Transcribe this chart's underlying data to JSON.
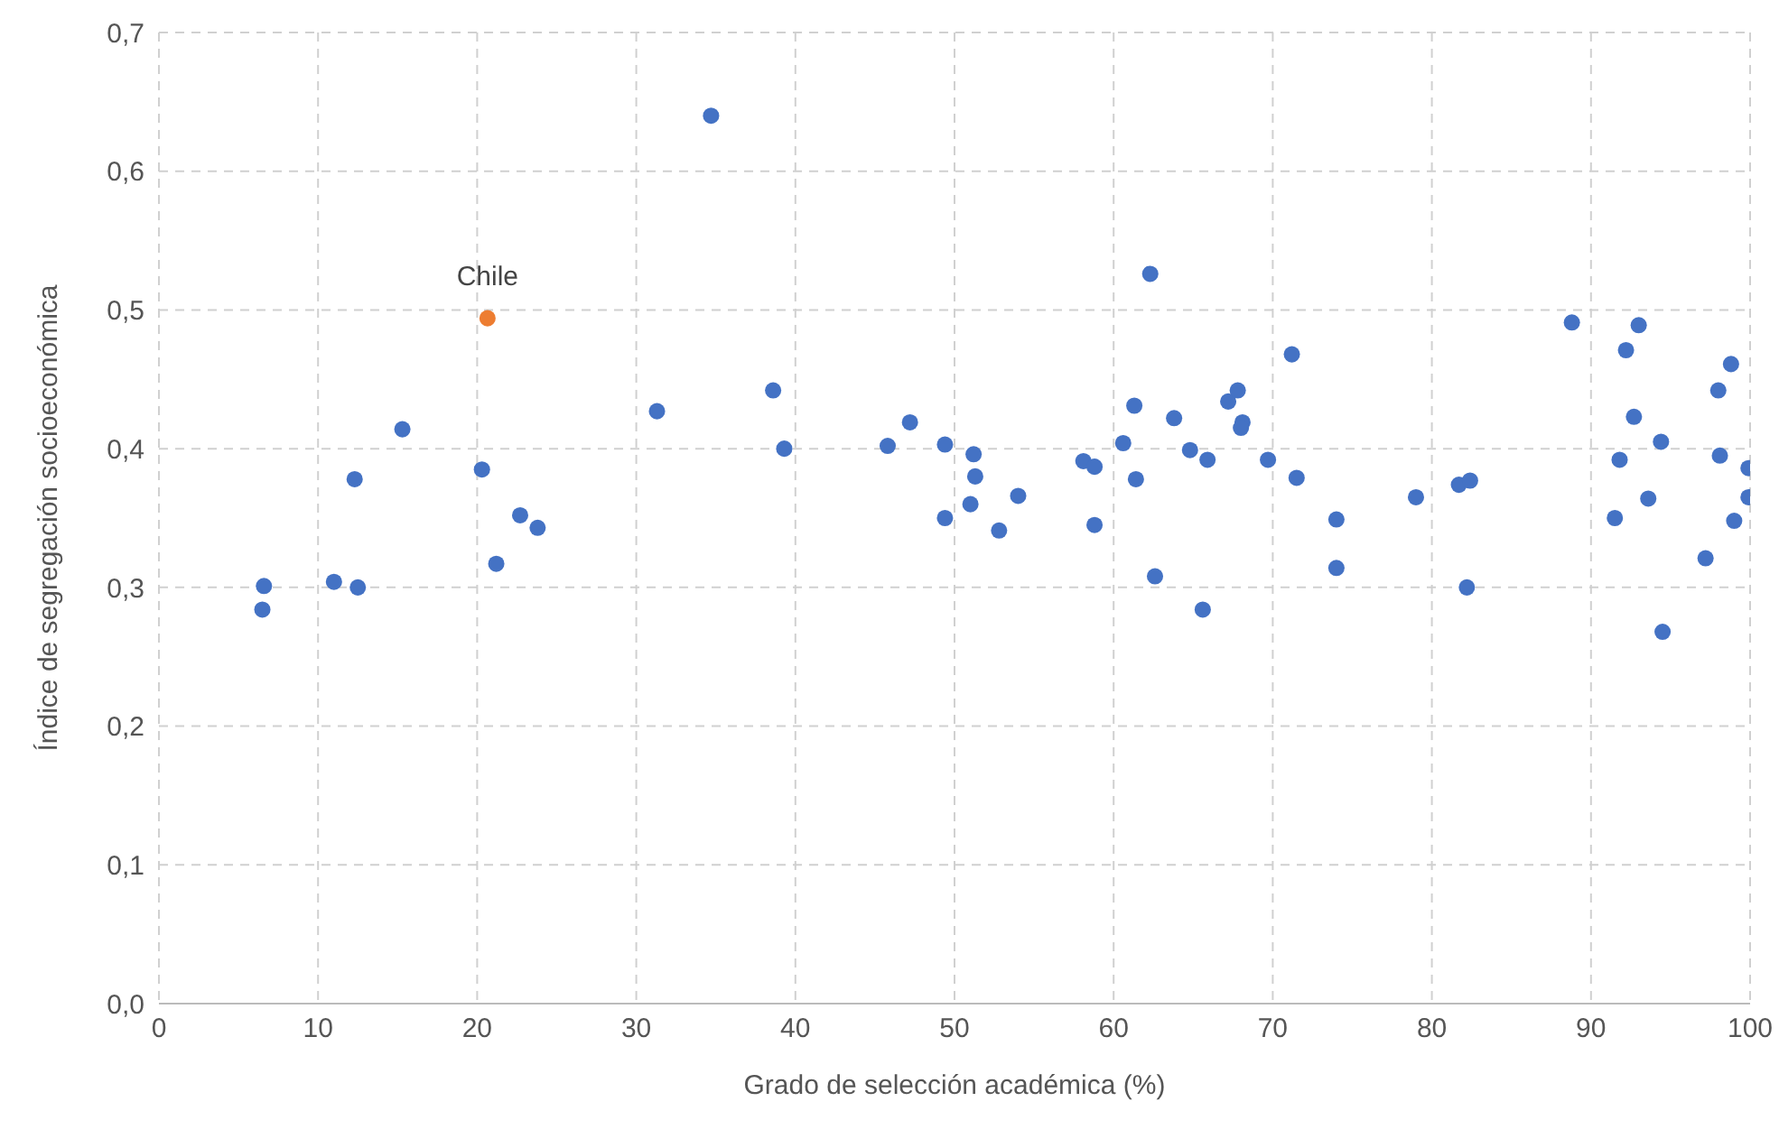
{
  "chart_data": {
    "type": "scatter",
    "xlabel": "Grado de selección académica (%)",
    "ylabel": "Índice de segregación socioeconómica",
    "xlim": [
      0,
      100
    ],
    "xticks": [
      0,
      10,
      20,
      30,
      40,
      50,
      60,
      70,
      80,
      90,
      100
    ],
    "ylim": [
      0,
      0.7
    ],
    "yticks": [
      {
        "value": 0,
        "label": "0,0"
      },
      {
        "value": 0.1,
        "label": "0,1"
      },
      {
        "value": 0.2,
        "label": "0,2"
      },
      {
        "value": 0.3,
        "label": "0,3"
      },
      {
        "value": 0.4,
        "label": "0,4"
      },
      {
        "value": 0.5,
        "label": "0,5"
      },
      {
        "value": 0.6,
        "label": "0,6"
      },
      {
        "value": 0.7,
        "label": "0,7"
      }
    ],
    "grid": true,
    "legend": false,
    "marker": "circle",
    "series": [
      {
        "color": "#4472c4",
        "x": [
          34.7,
          31.3,
          15.3,
          12.3,
          20.3,
          22.7,
          23.8,
          21.2,
          6.6,
          6.5,
          11.0,
          12.5,
          38.6,
          39.3,
          45.8,
          47.2,
          49.4,
          51.2,
          51.3,
          51.0,
          49.4,
          52.8,
          54.0,
          58.1,
          58.8,
          58.8,
          60.6,
          61.3,
          61.4,
          62.3,
          62.6,
          63.8,
          64.8,
          65.9,
          65.6,
          67.2,
          67.8,
          68.1,
          68.0,
          69.7,
          71.2,
          71.5,
          74.0,
          74.0,
          79.0,
          81.7,
          82.4,
          82.2,
          88.8,
          93.0,
          92.2,
          92.7,
          94.4,
          91.8,
          93.6,
          91.5,
          94.5,
          98.8,
          98.0,
          98.1,
          99.9,
          99.9,
          99.0,
          97.2
        ],
        "values": [
          0.64,
          0.427,
          0.414,
          0.378,
          0.385,
          0.352,
          0.343,
          0.317,
          0.301,
          0.284,
          0.304,
          0.3,
          0.442,
          0.4,
          0.402,
          0.419,
          0.403,
          0.396,
          0.38,
          0.36,
          0.35,
          0.341,
          0.366,
          0.391,
          0.387,
          0.345,
          0.404,
          0.431,
          0.378,
          0.526,
          0.308,
          0.422,
          0.399,
          0.392,
          0.284,
          0.434,
          0.442,
          0.419,
          0.415,
          0.392,
          0.468,
          0.379,
          0.349,
          0.314,
          0.365,
          0.374,
          0.377,
          0.3,
          0.491,
          0.489,
          0.471,
          0.423,
          0.405,
          0.392,
          0.364,
          0.35,
          0.268,
          0.461,
          0.442,
          0.395,
          0.386,
          0.365,
          0.348,
          0.321
        ]
      },
      {
        "name": "Chile",
        "color": "#ed7d31",
        "x": [
          20.65
        ],
        "values": [
          0.494
        ]
      }
    ]
  }
}
